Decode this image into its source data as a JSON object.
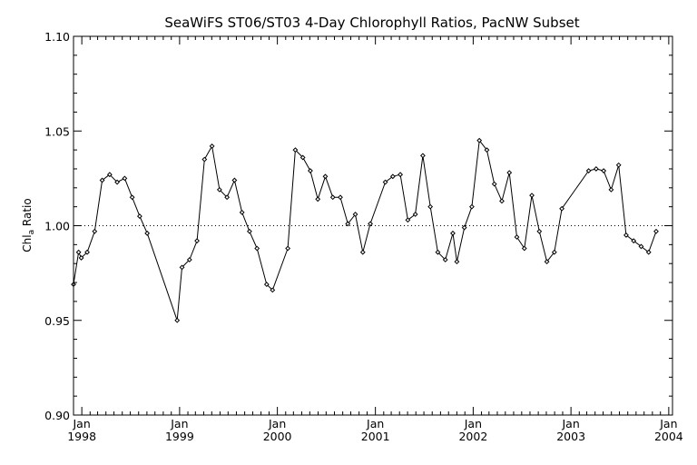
{
  "chart_data": {
    "type": "line",
    "title": "SeaWiFS ST06/ST03 4-Day Chlorophyll Ratios, PacNW Subset",
    "xlabel": "",
    "ylabel": "Chl",
    "ylabel_subscript": "a",
    "ylabel_suffix": " Ratio",
    "ylim": [
      0.9,
      1.1
    ],
    "yticks": [
      "0.90",
      "0.95",
      "1.00",
      "1.05",
      "1.10"
    ],
    "yticks_values": [
      0.9,
      0.95,
      1.0,
      1.05,
      1.1
    ],
    "xlim": [
      "1997-12-01",
      "2004-01-15"
    ],
    "xticks": [
      {
        "month": "Jan",
        "year": "1998",
        "date": "1998-01-01"
      },
      {
        "month": "Jan",
        "year": "1999",
        "date": "1999-01-01"
      },
      {
        "month": "Jan",
        "year": "2000",
        "date": "2000-01-01"
      },
      {
        "month": "Jan",
        "year": "2001",
        "date": "2001-01-01"
      },
      {
        "month": "Jan",
        "year": "2002",
        "date": "2002-01-01"
      },
      {
        "month": "Jan",
        "year": "2003",
        "date": "2003-01-01"
      },
      {
        "month": "Jan",
        "year": "2004",
        "date": "2004-01-01"
      }
    ],
    "reference_line": {
      "y": 1.0,
      "style": "dotted"
    },
    "grid": false,
    "series": [
      {
        "color": "#000000",
        "marker": "diamond",
        "points": [
          [
            "1997-12-01",
            0.969
          ],
          [
            "1997-12-20",
            0.986
          ],
          [
            "1997-12-30",
            0.983
          ],
          [
            "1998-01-21",
            0.986
          ],
          [
            "1998-02-18",
            0.997
          ],
          [
            "1998-03-18",
            1.024
          ],
          [
            "1998-04-15",
            1.027
          ],
          [
            "1998-05-13",
            1.023
          ],
          [
            "1998-06-10",
            1.025
          ],
          [
            "1998-07-08",
            1.015
          ],
          [
            "1998-08-05",
            1.005
          ],
          [
            "1998-09-02",
            0.996
          ],
          [
            "1998-12-23",
            0.95
          ],
          [
            "1999-01-10",
            0.978
          ],
          [
            "1999-02-07",
            0.982
          ],
          [
            "1999-03-07",
            0.992
          ],
          [
            "1999-04-04",
            1.035
          ],
          [
            "1999-05-02",
            1.042
          ],
          [
            "1999-05-30",
            1.019
          ],
          [
            "1999-06-27",
            1.015
          ],
          [
            "1999-07-25",
            1.024
          ],
          [
            "1999-08-22",
            1.007
          ],
          [
            "1999-09-19",
            0.997
          ],
          [
            "1999-10-17",
            0.988
          ],
          [
            "1999-11-22",
            0.969
          ],
          [
            "1999-12-14",
            0.966
          ],
          [
            "2000-02-09",
            0.988
          ],
          [
            "2000-03-08",
            1.04
          ],
          [
            "2000-04-05",
            1.036
          ],
          [
            "2000-05-03",
            1.029
          ],
          [
            "2000-05-31",
            1.014
          ],
          [
            "2000-06-28",
            1.026
          ],
          [
            "2000-07-26",
            1.015
          ],
          [
            "2000-08-23",
            1.015
          ],
          [
            "2000-09-20",
            1.001
          ],
          [
            "2000-10-18",
            1.006
          ],
          [
            "2000-11-15",
            0.986
          ],
          [
            "2000-12-13",
            1.001
          ],
          [
            "2001-02-07",
            1.023
          ],
          [
            "2001-03-07",
            1.026
          ],
          [
            "2001-04-04",
            1.027
          ],
          [
            "2001-05-02",
            1.003
          ],
          [
            "2001-05-30",
            1.006
          ],
          [
            "2001-06-27",
            1.037
          ],
          [
            "2001-07-25",
            1.01
          ],
          [
            "2001-08-22",
            0.986
          ],
          [
            "2001-09-19",
            0.982
          ],
          [
            "2001-10-17",
            0.996
          ],
          [
            "2001-11-01",
            0.981
          ],
          [
            "2001-11-29",
            0.999
          ],
          [
            "2001-12-27",
            1.01
          ],
          [
            "2002-01-24",
            1.045
          ],
          [
            "2002-02-21",
            1.04
          ],
          [
            "2002-03-21",
            1.022
          ],
          [
            "2002-04-18",
            1.013
          ],
          [
            "2002-05-16",
            1.028
          ],
          [
            "2002-06-13",
            0.994
          ],
          [
            "2002-07-11",
            0.988
          ],
          [
            "2002-08-08",
            1.016
          ],
          [
            "2002-09-05",
            0.997
          ],
          [
            "2002-10-03",
            0.981
          ],
          [
            "2002-10-31",
            0.986
          ],
          [
            "2002-11-28",
            1.009
          ],
          [
            "2003-03-08",
            1.029
          ],
          [
            "2003-04-05",
            1.03
          ],
          [
            "2003-05-03",
            1.029
          ],
          [
            "2003-05-31",
            1.019
          ],
          [
            "2003-06-28",
            1.032
          ],
          [
            "2003-07-26",
            0.995
          ],
          [
            "2003-08-23",
            0.992
          ],
          [
            "2003-09-20",
            0.989
          ],
          [
            "2003-10-18",
            0.986
          ],
          [
            "2003-11-15",
            0.997
          ]
        ]
      }
    ]
  }
}
